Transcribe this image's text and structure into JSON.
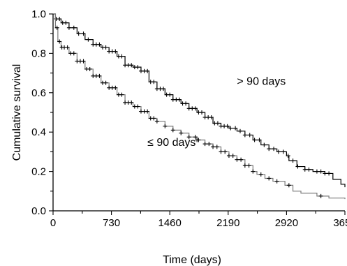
{
  "chart_data": {
    "type": "line",
    "title": "",
    "xlabel": "Time (days)",
    "ylabel": "Cumulative survival",
    "xlim": [
      0,
      3650
    ],
    "ylim": [
      0,
      1.0
    ],
    "x_ticks": [
      0,
      730,
      1460,
      2190,
      2920,
      3650
    ],
    "y_ticks": [
      0.0,
      0.2,
      0.4,
      0.6,
      0.8,
      1.0
    ],
    "x_tick_labels": [
      "0",
      "730",
      "1460",
      "2190",
      "2920",
      "3650"
    ],
    "y_tick_labels": [
      "0.0",
      "0.2",
      "0.4",
      "0.6",
      "0.8",
      "1.0"
    ],
    "series": [
      {
        "name": "> 90 days",
        "color": "#000000",
        "step": true,
        "points": [
          [
            0,
            1.0
          ],
          [
            30,
            0.975
          ],
          [
            100,
            0.955
          ],
          [
            200,
            0.93
          ],
          [
            300,
            0.9
          ],
          [
            400,
            0.87
          ],
          [
            500,
            0.845
          ],
          [
            600,
            0.83
          ],
          [
            700,
            0.81
          ],
          [
            800,
            0.785
          ],
          [
            900,
            0.74
          ],
          [
            1000,
            0.73
          ],
          [
            1100,
            0.71
          ],
          [
            1200,
            0.655
          ],
          [
            1300,
            0.62
          ],
          [
            1400,
            0.59
          ],
          [
            1500,
            0.565
          ],
          [
            1600,
            0.545
          ],
          [
            1700,
            0.52
          ],
          [
            1800,
            0.5
          ],
          [
            1900,
            0.475
          ],
          [
            2000,
            0.445
          ],
          [
            2100,
            0.43
          ],
          [
            2200,
            0.42
          ],
          [
            2300,
            0.405
          ],
          [
            2400,
            0.385
          ],
          [
            2500,
            0.36
          ],
          [
            2600,
            0.335
          ],
          [
            2700,
            0.315
          ],
          [
            2800,
            0.3
          ],
          [
            2920,
            0.28
          ],
          [
            2950,
            0.255
          ],
          [
            3050,
            0.225
          ],
          [
            3150,
            0.21
          ],
          [
            3250,
            0.2
          ],
          [
            3400,
            0.19
          ],
          [
            3500,
            0.16
          ],
          [
            3600,
            0.135
          ],
          [
            3650,
            0.12
          ]
        ],
        "censored_x": [
          40,
          80,
          120,
          160,
          200,
          260,
          320,
          380,
          440,
          500,
          540,
          580,
          620,
          660,
          700,
          740,
          780,
          820,
          860,
          900,
          940,
          980,
          1020,
          1060,
          1100,
          1140,
          1180,
          1220,
          1260,
          1300,
          1340,
          1380,
          1420,
          1460,
          1500,
          1540,
          1580,
          1620,
          1660,
          1700,
          1740,
          1780,
          1820,
          1860,
          1900,
          1940,
          1980,
          2020,
          2060,
          2100,
          2140,
          2180,
          2220,
          2280,
          2340,
          2400,
          2460,
          2520,
          2580,
          2640,
          2700,
          2760,
          2820,
          2880,
          2940,
          3000,
          3060,
          3150,
          3200,
          3300,
          3350,
          3400,
          3450
        ]
      },
      {
        "name": "≤ 90 days",
        "color": "#7a7a7a",
        "step": true,
        "points": [
          [
            0,
            1.0
          ],
          [
            30,
            0.93
          ],
          [
            60,
            0.86
          ],
          [
            100,
            0.83
          ],
          [
            200,
            0.8
          ],
          [
            300,
            0.76
          ],
          [
            400,
            0.72
          ],
          [
            500,
            0.685
          ],
          [
            600,
            0.65
          ],
          [
            700,
            0.625
          ],
          [
            800,
            0.59
          ],
          [
            900,
            0.55
          ],
          [
            1000,
            0.53
          ],
          [
            1100,
            0.505
          ],
          [
            1200,
            0.47
          ],
          [
            1300,
            0.455
          ],
          [
            1400,
            0.43
          ],
          [
            1500,
            0.41
          ],
          [
            1600,
            0.395
          ],
          [
            1700,
            0.375
          ],
          [
            1800,
            0.36
          ],
          [
            1900,
            0.34
          ],
          [
            2000,
            0.325
          ],
          [
            2100,
            0.3
          ],
          [
            2200,
            0.28
          ],
          [
            2300,
            0.26
          ],
          [
            2400,
            0.23
          ],
          [
            2500,
            0.2
          ],
          [
            2550,
            0.185
          ],
          [
            2650,
            0.165
          ],
          [
            2750,
            0.15
          ],
          [
            2900,
            0.13
          ],
          [
            3000,
            0.1
          ],
          [
            3100,
            0.09
          ],
          [
            3300,
            0.075
          ],
          [
            3450,
            0.065
          ],
          [
            3650,
            0.06
          ]
        ],
        "censored_x": [
          50,
          80,
          110,
          140,
          180,
          220,
          260,
          300,
          340,
          380,
          420,
          460,
          500,
          540,
          580,
          620,
          660,
          700,
          740,
          780,
          820,
          860,
          900,
          940,
          980,
          1020,
          1060,
          1100,
          1140,
          1180,
          1220,
          1260,
          1300,
          1400,
          1500,
          1600,
          1700,
          1780,
          1800,
          1820,
          1900,
          1950,
          2000,
          2050,
          2100,
          2150,
          2200,
          2250,
          2300,
          2350,
          2400,
          2450,
          2500,
          2600,
          2700,
          2800,
          2950,
          3350
        ]
      }
    ],
    "annotations": [
      {
        "text": "> 90 days",
        "x": 2300,
        "y": 0.64
      },
      {
        "text": "≤ 90 days",
        "x": 1180,
        "y": 0.33
      }
    ]
  }
}
